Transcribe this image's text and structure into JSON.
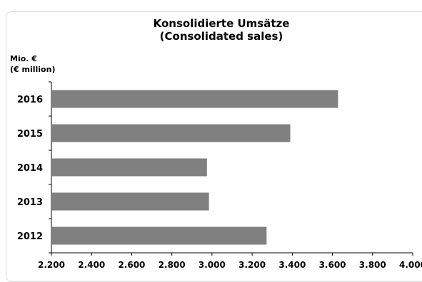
{
  "chart_data": {
    "type": "bar",
    "orientation": "horizontal",
    "title": "Konsolidierte Umsätze",
    "subtitle": "(Consolidated sales)",
    "unit_label_line1": "Mio. €",
    "unit_label_line2": "(€ million)",
    "categories": [
      "2016",
      "2015",
      "2014",
      "2013",
      "2012"
    ],
    "values": [
      3628,
      3390,
      2975,
      2985,
      3272
    ],
    "xlim": [
      2200,
      4000
    ],
    "xticks": [
      2200,
      2400,
      2600,
      2800,
      3000,
      3200,
      3400,
      3600,
      3800,
      4000
    ],
    "xtick_labels": [
      "2.200",
      "2.400",
      "2.600",
      "2.800",
      "3.000",
      "3.200",
      "3.400",
      "3.600",
      "3.800",
      "4.000"
    ],
    "grid": false,
    "legend": "none",
    "bar_color": "#808080"
  }
}
